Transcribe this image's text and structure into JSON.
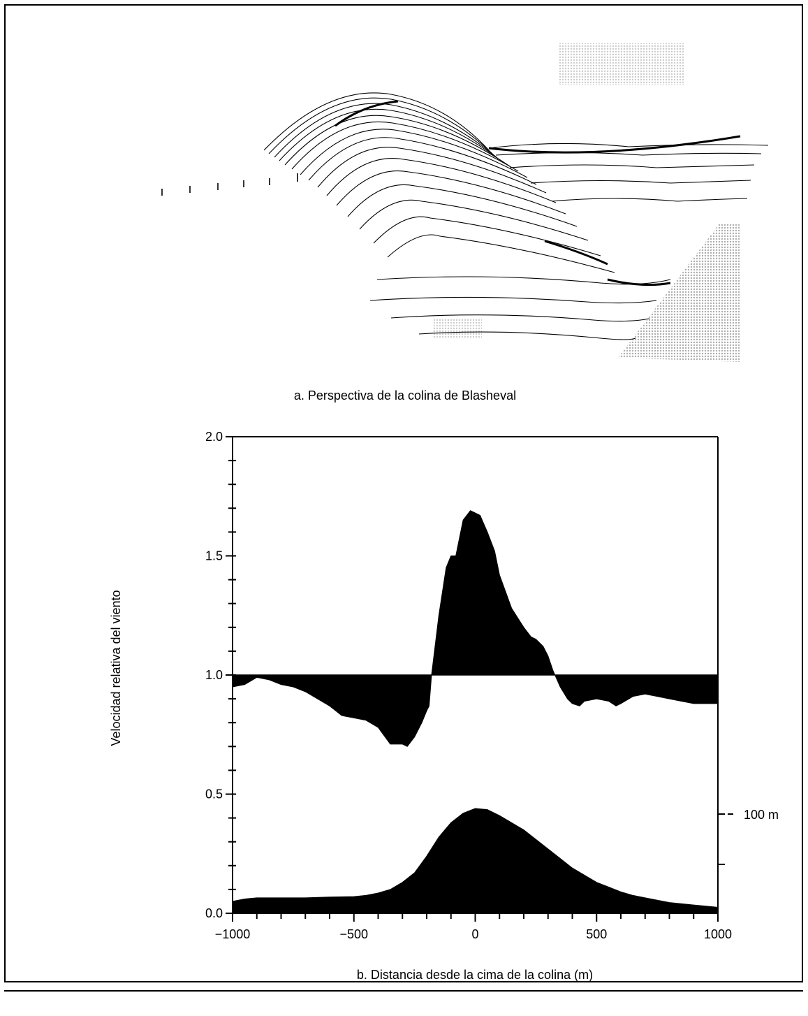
{
  "captions": {
    "top": "a. Perspectiva de la colina de Blasheval",
    "bottom": "b. Distancia desde la cima de la colina (m)"
  },
  "chart_data": {
    "type": "area",
    "title": "",
    "xlabel": "b. Distancia desde la cima de la colina (m)",
    "ylabel": "Velocidad relativa del viento",
    "xlim": [
      -1000,
      1000
    ],
    "ylim": [
      0.0,
      2.0
    ],
    "x_ticks": [
      -1000,
      -500,
      0,
      500,
      1000
    ],
    "x_tick_labels": [
      "−1000",
      "−500",
      "0",
      "500",
      "1000"
    ],
    "y_ticks": [
      0.0,
      0.5,
      1.0,
      1.5,
      2.0
    ],
    "y_tick_labels": [
      "0.0",
      "0.5",
      "1.0",
      "1.5",
      "2.0"
    ],
    "baseline": 1.0,
    "right_axis_label": "100 m",
    "grid": false,
    "series": [
      {
        "x": [
          -1000,
          -950,
          -900,
          -850,
          -800,
          -750,
          -700,
          -650,
          -600,
          -550,
          -500,
          -450,
          -400,
          -350,
          -330,
          -300,
          -280,
          -250,
          -220,
          -200,
          -190,
          -180,
          -150,
          -120,
          -100,
          -80,
          -50,
          -20,
          0,
          20,
          50,
          80,
          100,
          150,
          200,
          230,
          250,
          280,
          300,
          320,
          350,
          380,
          400,
          430,
          450,
          500,
          550,
          580,
          600,
          650,
          700,
          750,
          800,
          850,
          900,
          950,
          1000
        ],
        "values": [
          0.95,
          0.96,
          0.99,
          0.98,
          0.96,
          0.95,
          0.93,
          0.9,
          0.87,
          0.83,
          0.82,
          0.81,
          0.78,
          0.71,
          0.71,
          0.71,
          0.7,
          0.74,
          0.8,
          0.85,
          0.87,
          1.0,
          1.25,
          1.45,
          1.5,
          1.5,
          1.65,
          1.69,
          1.68,
          1.67,
          1.6,
          1.52,
          1.42,
          1.28,
          1.2,
          1.16,
          1.15,
          1.12,
          1.08,
          1.02,
          0.95,
          0.9,
          0.88,
          0.87,
          0.89,
          0.9,
          0.89,
          0.87,
          0.88,
          0.91,
          0.92,
          0.91,
          0.9,
          0.89,
          0.88,
          0.88,
          0.88
        ]
      },
      {
        "x": [
          -1000,
          -950,
          -900,
          -800,
          -700,
          -600,
          -500,
          -450,
          -400,
          -350,
          -300,
          -250,
          -200,
          -150,
          -100,
          -50,
          0,
          50,
          100,
          150,
          200,
          250,
          300,
          350,
          400,
          450,
          500,
          550,
          600,
          650,
          700,
          750,
          800,
          850,
          900,
          950,
          1000
        ],
        "values": [
          0.05,
          0.06,
          0.065,
          0.065,
          0.065,
          0.068,
          0.07,
          0.075,
          0.085,
          0.1,
          0.13,
          0.17,
          0.24,
          0.32,
          0.38,
          0.42,
          0.44,
          0.435,
          0.41,
          0.38,
          0.35,
          0.31,
          0.27,
          0.23,
          0.19,
          0.16,
          0.13,
          0.11,
          0.09,
          0.075,
          0.065,
          0.055,
          0.045,
          0.04,
          0.035,
          0.03,
          0.025
        ]
      }
    ]
  }
}
